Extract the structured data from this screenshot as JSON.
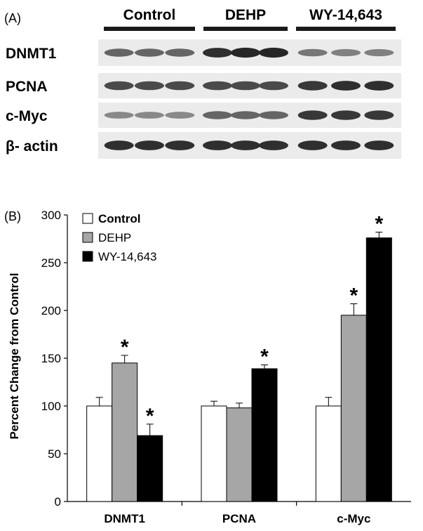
{
  "panel_a": {
    "label": "(A)",
    "groups": [
      "Control",
      "DEHP",
      "WY-14,643"
    ],
    "lanes_per_group": 3,
    "blots": [
      {
        "name": "DNMT1",
        "intensity": [
          0.55,
          0.55,
          0.55,
          0.85,
          0.9,
          0.9,
          0.45,
          0.4,
          0.4
        ]
      },
      {
        "name": "PCNA",
        "intensity": [
          0.7,
          0.7,
          0.7,
          0.7,
          0.7,
          0.7,
          0.8,
          0.85,
          0.85
        ]
      },
      {
        "name": "c-Myc",
        "intensity": [
          0.35,
          0.35,
          0.35,
          0.55,
          0.55,
          0.55,
          0.8,
          0.8,
          0.8
        ]
      },
      {
        "name": "β- actin",
        "intensity": [
          0.85,
          0.85,
          0.85,
          0.85,
          0.85,
          0.85,
          0.85,
          0.85,
          0.85
        ]
      }
    ]
  },
  "chart_data": {
    "type": "bar",
    "panel_label": "(B)",
    "categories": [
      "DNMT1",
      "PCNA",
      "c-Myc"
    ],
    "ylabel": "Percent Change from Control",
    "ylim": [
      0,
      300
    ],
    "yticks": [
      0,
      50,
      100,
      150,
      200,
      250,
      300
    ],
    "grid": false,
    "legend_position": "top-left",
    "series": [
      {
        "name": "Control",
        "color": "#ffffff",
        "values": [
          100,
          100,
          100
        ],
        "errors": [
          9,
          5,
          9
        ],
        "significant": [
          false,
          false,
          false
        ]
      },
      {
        "name": "DEHP",
        "color": "#a6a6a6",
        "values": [
          145,
          98,
          195
        ],
        "errors": [
          8,
          5,
          12
        ],
        "significant": [
          true,
          false,
          true
        ]
      },
      {
        "name": "WY-14,643",
        "color": "#000000",
        "values": [
          69,
          139,
          276
        ],
        "errors": [
          12,
          4,
          6
        ],
        "significant": [
          true,
          true,
          true
        ]
      }
    ],
    "significance_marker": "*"
  }
}
